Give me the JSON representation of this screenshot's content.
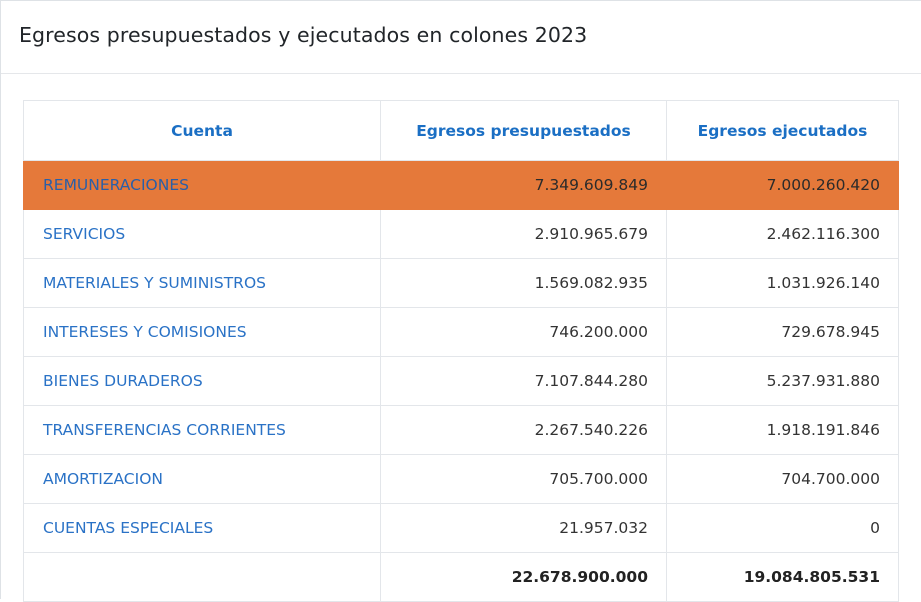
{
  "card": {
    "title": "Egresos presupuestados y ejecutados en colones 2023"
  },
  "table": {
    "headers": [
      "Cuenta",
      "Egresos presupuestados",
      "Egresos ejecutados"
    ],
    "rows": [
      {
        "cuenta": "REMUNERACIONES",
        "presupuestados": "7.349.609.849",
        "ejecutados": "7.000.260.420",
        "highlighted": true
      },
      {
        "cuenta": "SERVICIOS",
        "presupuestados": "2.910.965.679",
        "ejecutados": "2.462.116.300"
      },
      {
        "cuenta": "MATERIALES Y SUMINISTROS",
        "presupuestados": "1.569.082.935",
        "ejecutados": "1.031.926.140"
      },
      {
        "cuenta": "INTERESES Y COMISIONES",
        "presupuestados": "746.200.000",
        "ejecutados": "729.678.945"
      },
      {
        "cuenta": "BIENES DURADEROS",
        "presupuestados": "7.107.844.280",
        "ejecutados": "5.237.931.880"
      },
      {
        "cuenta": "TRANSFERENCIAS CORRIENTES",
        "presupuestados": "2.267.540.226",
        "ejecutados": "1.918.191.846"
      },
      {
        "cuenta": "AMORTIZACION",
        "presupuestados": "705.700.000",
        "ejecutados": "704.700.000"
      },
      {
        "cuenta": "CUENTAS ESPECIALES",
        "presupuestados": "21.957.032",
        "ejecutados": "0"
      }
    ],
    "total": {
      "cuenta": "",
      "presupuestados": "22.678.900.000",
      "ejecutados": "19.084.805.531"
    }
  },
  "colors": {
    "highlight_row": "#e5793a",
    "header_text": "#1b6fc4",
    "link_text": "#2a72c6"
  }
}
